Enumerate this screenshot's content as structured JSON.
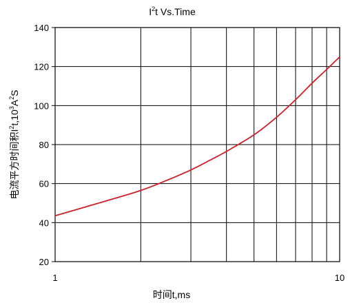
{
  "chart_data": {
    "type": "line",
    "title": {
      "base": "I",
      "sup": "2",
      "rest": "t  Vs.Time"
    },
    "xlabel": "时间t,ms",
    "ylabel": {
      "p1": "电流平方时间积I",
      "s1": "2",
      "p2": "t,10",
      "s2": "3",
      "p3": "A",
      "s3": "2",
      "p4": "S"
    },
    "x_scale": "log",
    "xlim": [
      1,
      10
    ],
    "ylim": [
      20,
      140
    ],
    "x_ticks": [
      1,
      10
    ],
    "x_tick_labels": [
      "1",
      "10"
    ],
    "y_ticks": [
      20,
      40,
      60,
      80,
      100,
      120,
      140
    ],
    "y_tick_labels": [
      "20",
      "40",
      "60",
      "80",
      "100",
      "120",
      "140"
    ],
    "grid": true,
    "line_color": "#cc1f27",
    "series": [
      {
        "x": [
          1,
          1.5,
          2,
          2.5,
          3,
          3.5,
          4,
          5,
          6,
          7,
          8,
          9,
          10
        ],
        "y": [
          43.5,
          51,
          56.5,
          62,
          67,
          72,
          76.5,
          85,
          94,
          103,
          111.5,
          118.5,
          125
        ]
      }
    ]
  }
}
